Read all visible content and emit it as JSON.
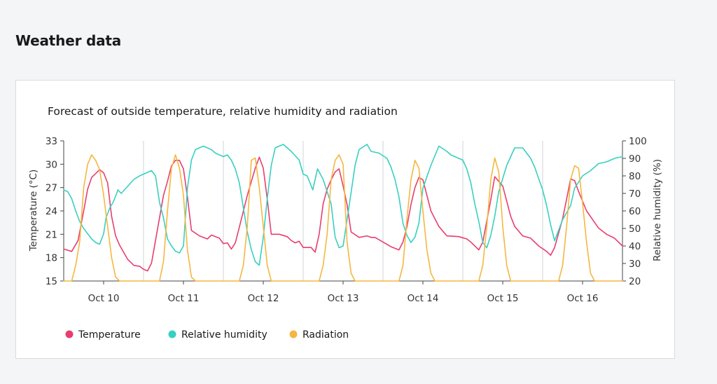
{
  "page": {
    "title": "Weather data"
  },
  "chart_data": {
    "type": "line",
    "title": "Forecast of outside temperature, relative humidity and radiation",
    "ylabel_left": "Temperature (°C)",
    "ylabel_right": "Relative humidity (%)",
    "ylim_left": [
      15,
      33
    ],
    "ylim_right": [
      20,
      100
    ],
    "yticks_left": [
      "33",
      "30",
      "27",
      "24",
      "21",
      "18",
      "15"
    ],
    "yticks_right": [
      "100",
      "90",
      "80",
      "70",
      "60",
      "50",
      "40",
      "30",
      "20"
    ],
    "x_range": [
      9.5,
      16.5
    ],
    "x_ticks": [
      {
        "x": 10,
        "label": "Oct 10"
      },
      {
        "x": 11,
        "label": "Oct 11"
      },
      {
        "x": 12,
        "label": "Oct 12"
      },
      {
        "x": 13,
        "label": "Oct 13"
      },
      {
        "x": 14,
        "label": "Oct 14"
      },
      {
        "x": 15,
        "label": "Oct 15"
      },
      {
        "x": 16,
        "label": "Oct 16"
      }
    ],
    "grid": true,
    "legend_position": "bottom-left",
    "series": [
      {
        "name": "Temperature",
        "axis": "left",
        "color": "#e83e6f",
        "points": [
          [
            9.5,
            19.1
          ],
          [
            9.6,
            18.8
          ],
          [
            9.68,
            20.2
          ],
          [
            9.75,
            24.0
          ],
          [
            9.8,
            26.8
          ],
          [
            9.85,
            28.3
          ],
          [
            9.9,
            28.8
          ],
          [
            9.95,
            29.3
          ],
          [
            10.0,
            28.9
          ],
          [
            10.05,
            27.6
          ],
          [
            10.1,
            23.3
          ],
          [
            10.15,
            20.8
          ],
          [
            10.2,
            19.6
          ],
          [
            10.3,
            17.8
          ],
          [
            10.38,
            17.0
          ],
          [
            10.45,
            16.9
          ],
          [
            10.5,
            16.5
          ],
          [
            10.55,
            16.3
          ],
          [
            10.6,
            17.3
          ],
          [
            10.65,
            20.2
          ],
          [
            10.75,
            26.0
          ],
          [
            10.8,
            27.8
          ],
          [
            10.85,
            29.8
          ],
          [
            10.9,
            30.5
          ],
          [
            10.95,
            30.5
          ],
          [
            11.0,
            29.4
          ],
          [
            11.05,
            25.8
          ],
          [
            11.1,
            21.5
          ],
          [
            11.2,
            20.8
          ],
          [
            11.3,
            20.4
          ],
          [
            11.35,
            20.9
          ],
          [
            11.45,
            20.5
          ],
          [
            11.5,
            19.8
          ],
          [
            11.55,
            19.9
          ],
          [
            11.6,
            19.1
          ],
          [
            11.65,
            19.9
          ],
          [
            11.7,
            21.9
          ],
          [
            11.8,
            26.0
          ],
          [
            11.9,
            29.5
          ],
          [
            11.95,
            30.9
          ],
          [
            12.0,
            29.5
          ],
          [
            12.05,
            25.5
          ],
          [
            12.1,
            21.0
          ],
          [
            12.2,
            21.0
          ],
          [
            12.3,
            20.7
          ],
          [
            12.35,
            20.2
          ],
          [
            12.4,
            19.9
          ],
          [
            12.45,
            20.1
          ],
          [
            12.5,
            19.3
          ],
          [
            12.6,
            19.3
          ],
          [
            12.65,
            18.7
          ],
          [
            12.7,
            21.0
          ],
          [
            12.75,
            24.9
          ],
          [
            12.8,
            26.8
          ],
          [
            12.85,
            28.0
          ],
          [
            12.9,
            29.0
          ],
          [
            12.95,
            29.4
          ],
          [
            13.0,
            27.2
          ],
          [
            13.05,
            24.8
          ],
          [
            13.1,
            21.3
          ],
          [
            13.2,
            20.6
          ],
          [
            13.3,
            20.8
          ],
          [
            13.35,
            20.6
          ],
          [
            13.4,
            20.6
          ],
          [
            13.5,
            20.0
          ],
          [
            13.6,
            19.4
          ],
          [
            13.7,
            19.0
          ],
          [
            13.75,
            20.0
          ],
          [
            13.8,
            22.0
          ],
          [
            13.85,
            24.8
          ],
          [
            13.9,
            27.0
          ],
          [
            13.95,
            28.3
          ],
          [
            14.0,
            28.0
          ],
          [
            14.05,
            26.0
          ],
          [
            14.1,
            24.0
          ],
          [
            14.2,
            22.0
          ],
          [
            14.3,
            20.8
          ],
          [
            14.45,
            20.7
          ],
          [
            14.55,
            20.4
          ],
          [
            14.6,
            20.0
          ],
          [
            14.7,
            19.0
          ],
          [
            14.75,
            20.0
          ],
          [
            14.85,
            25.4
          ],
          [
            14.9,
            28.4
          ],
          [
            15.0,
            27.2
          ],
          [
            15.1,
            23.3
          ],
          [
            15.15,
            22.0
          ],
          [
            15.25,
            20.8
          ],
          [
            15.35,
            20.5
          ],
          [
            15.45,
            19.5
          ],
          [
            15.55,
            18.8
          ],
          [
            15.6,
            18.3
          ],
          [
            15.65,
            19.3
          ],
          [
            15.75,
            23.0
          ],
          [
            15.8,
            25.5
          ],
          [
            15.85,
            28.1
          ],
          [
            15.9,
            27.9
          ],
          [
            15.95,
            26.5
          ],
          [
            16.05,
            24.0
          ],
          [
            16.2,
            21.8
          ],
          [
            16.3,
            21.0
          ],
          [
            16.4,
            20.5
          ],
          [
            16.5,
            19.5
          ]
        ]
      },
      {
        "name": "Relative humidity",
        "axis": "right",
        "color": "#38d0c0",
        "points": [
          [
            9.5,
            72
          ],
          [
            9.55,
            71
          ],
          [
            9.6,
            67
          ],
          [
            9.65,
            60
          ],
          [
            9.7,
            54
          ],
          [
            9.75,
            50
          ],
          [
            9.85,
            44
          ],
          [
            9.9,
            42
          ],
          [
            9.95,
            41
          ],
          [
            10.0,
            47
          ],
          [
            10.03,
            56
          ],
          [
            10.08,
            62
          ],
          [
            10.12,
            65
          ],
          [
            10.18,
            72
          ],
          [
            10.22,
            70
          ],
          [
            10.3,
            74
          ],
          [
            10.38,
            78
          ],
          [
            10.45,
            80
          ],
          [
            10.5,
            81
          ],
          [
            10.6,
            83
          ],
          [
            10.65,
            80
          ],
          [
            10.7,
            65
          ],
          [
            10.75,
            56
          ],
          [
            10.8,
            44
          ],
          [
            10.85,
            40
          ],
          [
            10.9,
            37
          ],
          [
            10.95,
            36
          ],
          [
            11.0,
            40
          ],
          [
            11.05,
            73
          ],
          [
            11.1,
            89
          ],
          [
            11.15,
            95
          ],
          [
            11.25,
            97
          ],
          [
            11.35,
            95
          ],
          [
            11.4,
            93
          ],
          [
            11.5,
            91
          ],
          [
            11.55,
            92
          ],
          [
            11.6,
            89
          ],
          [
            11.65,
            84
          ],
          [
            11.7,
            76
          ],
          [
            11.75,
            62
          ],
          [
            11.8,
            48
          ],
          [
            11.85,
            38
          ],
          [
            11.9,
            31
          ],
          [
            11.95,
            29
          ],
          [
            12.0,
            45
          ],
          [
            12.05,
            67
          ],
          [
            12.1,
            86
          ],
          [
            12.15,
            96
          ],
          [
            12.25,
            98
          ],
          [
            12.35,
            94
          ],
          [
            12.45,
            89
          ],
          [
            12.5,
            81
          ],
          [
            12.55,
            80
          ],
          [
            12.62,
            72
          ],
          [
            12.68,
            84
          ],
          [
            12.75,
            78
          ],
          [
            12.85,
            64
          ],
          [
            12.9,
            45
          ],
          [
            12.95,
            39
          ],
          [
            13.0,
            40
          ],
          [
            13.05,
            55
          ],
          [
            13.15,
            86
          ],
          [
            13.2,
            95
          ],
          [
            13.3,
            98
          ],
          [
            13.35,
            94
          ],
          [
            13.45,
            93
          ],
          [
            13.55,
            90
          ],
          [
            13.6,
            85
          ],
          [
            13.65,
            78
          ],
          [
            13.7,
            68
          ],
          [
            13.75,
            53
          ],
          [
            13.8,
            46
          ],
          [
            13.85,
            42
          ],
          [
            13.9,
            45
          ],
          [
            13.95,
            53
          ],
          [
            14.0,
            73
          ],
          [
            14.1,
            86
          ],
          [
            14.2,
            97
          ],
          [
            14.3,
            94
          ],
          [
            14.35,
            92
          ],
          [
            14.5,
            89
          ],
          [
            14.55,
            84
          ],
          [
            14.6,
            76
          ],
          [
            14.65,
            64
          ],
          [
            14.7,
            54
          ],
          [
            14.75,
            42
          ],
          [
            14.8,
            39
          ],
          [
            14.85,
            46
          ],
          [
            14.9,
            57
          ],
          [
            14.95,
            71
          ],
          [
            15.05,
            86
          ],
          [
            15.15,
            96
          ],
          [
            15.25,
            96
          ],
          [
            15.3,
            93
          ],
          [
            15.35,
            90
          ],
          [
            15.4,
            85
          ],
          [
            15.5,
            72
          ],
          [
            15.55,
            63
          ],
          [
            15.6,
            52
          ],
          [
            15.65,
            43
          ],
          [
            15.75,
            55
          ],
          [
            15.85,
            63
          ],
          [
            15.9,
            73
          ],
          [
            16.0,
            80
          ],
          [
            16.1,
            83
          ],
          [
            16.2,
            87
          ],
          [
            16.3,
            88
          ],
          [
            16.4,
            90
          ],
          [
            16.5,
            91
          ]
        ]
      },
      {
        "name": "Radiation",
        "axis": "left",
        "color": "#f5b740",
        "points": [
          [
            9.5,
            15
          ],
          [
            9.6,
            15
          ],
          [
            9.65,
            17
          ],
          [
            9.7,
            20
          ],
          [
            9.75,
            27
          ],
          [
            9.8,
            30
          ],
          [
            9.85,
            31.2
          ],
          [
            9.9,
            30.5
          ],
          [
            9.95,
            29.3
          ],
          [
            10.0,
            26
          ],
          [
            10.05,
            22
          ],
          [
            10.1,
            18
          ],
          [
            10.15,
            15.5
          ],
          [
            10.2,
            15
          ],
          [
            10.7,
            15
          ],
          [
            10.75,
            17.5
          ],
          [
            10.8,
            24
          ],
          [
            10.85,
            29.5
          ],
          [
            10.9,
            31.2
          ],
          [
            10.95,
            29.5
          ],
          [
            11.0,
            26
          ],
          [
            11.05,
            19
          ],
          [
            11.1,
            15.5
          ],
          [
            11.15,
            15
          ],
          [
            11.7,
            15
          ],
          [
            11.75,
            17
          ],
          [
            11.8,
            22
          ],
          [
            11.85,
            30.5
          ],
          [
            11.9,
            30.8
          ],
          [
            11.95,
            27
          ],
          [
            12.0,
            22
          ],
          [
            12.05,
            17
          ],
          [
            12.1,
            15
          ],
          [
            12.7,
            15
          ],
          [
            12.75,
            17
          ],
          [
            12.8,
            21
          ],
          [
            12.85,
            28
          ],
          [
            12.9,
            30.5
          ],
          [
            12.95,
            31.2
          ],
          [
            13.0,
            30
          ],
          [
            13.05,
            20
          ],
          [
            13.1,
            16
          ],
          [
            13.15,
            15
          ],
          [
            13.7,
            15
          ],
          [
            13.75,
            17
          ],
          [
            13.8,
            23
          ],
          [
            13.85,
            28
          ],
          [
            13.9,
            30.5
          ],
          [
            13.95,
            29.5
          ],
          [
            14.0,
            24
          ],
          [
            14.05,
            19
          ],
          [
            14.1,
            16
          ],
          [
            14.15,
            15
          ],
          [
            14.7,
            15
          ],
          [
            14.75,
            17
          ],
          [
            14.8,
            22
          ],
          [
            14.85,
            28
          ],
          [
            14.9,
            30.8
          ],
          [
            14.95,
            29
          ],
          [
            15.0,
            22
          ],
          [
            15.05,
            17
          ],
          [
            15.1,
            15
          ],
          [
            15.7,
            15
          ],
          [
            15.75,
            17
          ],
          [
            15.8,
            22
          ],
          [
            15.85,
            28
          ],
          [
            15.9,
            29.8
          ],
          [
            15.95,
            29.5
          ],
          [
            16.0,
            25
          ],
          [
            16.05,
            20
          ],
          [
            16.1,
            16
          ],
          [
            16.15,
            15
          ],
          [
            16.5,
            15
          ]
        ]
      }
    ]
  }
}
